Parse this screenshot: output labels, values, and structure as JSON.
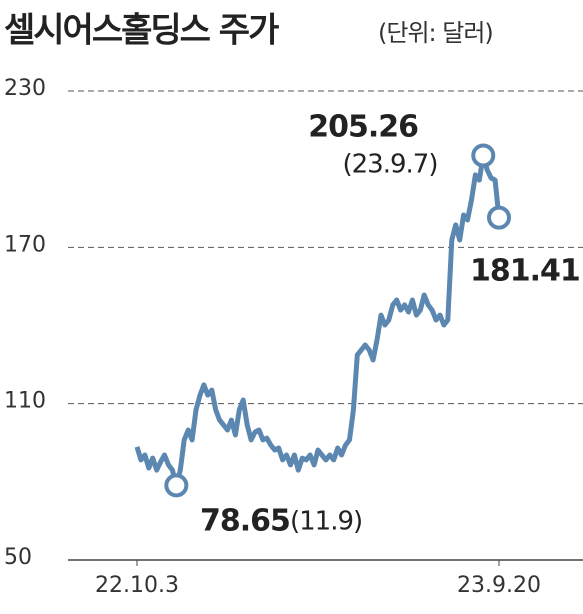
{
  "chart_data": {
    "type": "line",
    "title": "셀시어스홀딩스 주가",
    "subtitle": "(단위: 달러)",
    "categories": [
      "22.10.3",
      null,
      null,
      null,
      null,
      null,
      null,
      null,
      null,
      null,
      null,
      null,
      null,
      null,
      null,
      null,
      null,
      null,
      null,
      null,
      null,
      null,
      null,
      null,
      null,
      null,
      null,
      null,
      null,
      null,
      null,
      null,
      null,
      null,
      null,
      null,
      null,
      null,
      null,
      null,
      null,
      null,
      null,
      null,
      null,
      null,
      null,
      null,
      null,
      null,
      null,
      null,
      null,
      null,
      null,
      null,
      null,
      null,
      null,
      null,
      null,
      null,
      null,
      null,
      null,
      null,
      null,
      null,
      null,
      null,
      null,
      null,
      null,
      null,
      null,
      null,
      null,
      null,
      null,
      null,
      null,
      null,
      null,
      null,
      null,
      null,
      null,
      null,
      null,
      null,
      null,
      null,
      "23.9.20"
    ],
    "series": [
      {
        "color": "#5b87b0",
        "values": [
          93.4,
          88.4,
          90.3,
          85.3,
          89.1,
          84.5,
          87.6,
          90.3,
          86.5,
          84.5,
          78.65,
          84.5,
          96.1,
          99.9,
          96.1,
          107.6,
          113.3,
          117.2,
          113.3,
          115.2,
          107.6,
          103.7,
          101.8,
          99.9,
          103.7,
          98.0,
          107.6,
          111.4,
          101.8,
          96.1,
          99.1,
          99.9,
          96.1,
          96.8,
          94.1,
          92.2,
          93.0,
          88.4,
          90.3,
          86.5,
          90.3,
          84.5,
          89.1,
          88.4,
          90.3,
          86.5,
          92.2,
          90.3,
          88.4,
          90.3,
          88.4,
          93.0,
          90.3,
          94.1,
          96.1,
          107.6,
          128.7,
          130.6,
          132.5,
          130.6,
          126.8,
          134.4,
          144.0,
          140.2,
          142.1,
          147.9,
          149.8,
          145.9,
          147.9,
          145.2,
          149.8,
          144.0,
          145.9,
          151.7,
          147.9,
          145.9,
          142.1,
          144.0,
          140.2,
          142.1,
          172.8,
          178.6,
          172.8,
          182.4,
          180.5,
          188.2,
          197.8,
          195.8,
          205.26,
          199.7,
          196.6,
          195.8,
          181.41
        ]
      }
    ],
    "ylim": [
      50,
      230
    ],
    "yticks": [
      50,
      110,
      170,
      230
    ],
    "grid": true,
    "annotations": [
      {
        "index": 88,
        "text": "205.26",
        "note": "(23.9.7)"
      },
      {
        "index": 92,
        "text": "181.41"
      },
      {
        "index": 10,
        "text": "78.65",
        "note": "(11.9)"
      }
    ]
  }
}
